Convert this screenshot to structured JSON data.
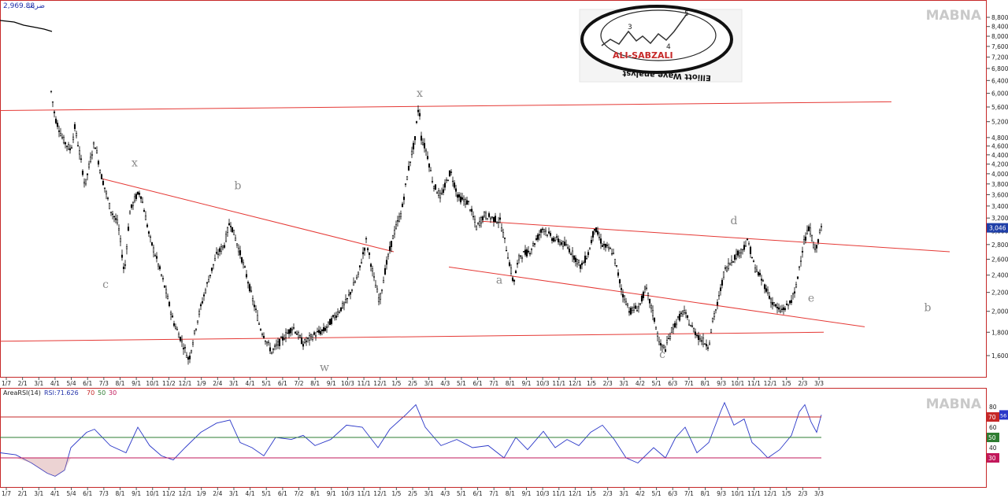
{
  "header": {
    "index_value": "2,969.88",
    "index_name": "ضریب"
  },
  "watermark": {
    "main": "MABNA",
    "rsi": "MABNA"
  },
  "logo": {
    "name": "ALI-SABZALI",
    "subtitle": "Elliott Wave analyst",
    "wave_labels": [
      "3",
      "4",
      "5"
    ]
  },
  "chart_data": [
    {
      "type": "candlestick",
      "ylim": [
        1450,
        9600
      ],
      "log_scale": true,
      "yticks": [
        1600,
        1800,
        2000,
        2200,
        2400,
        2600,
        2800,
        3000,
        3200,
        3400,
        3600,
        3800,
        4000,
        4200,
        4400,
        4600,
        4800,
        5200,
        5600,
        6000,
        6400,
        6800,
        7200,
        7600,
        8000,
        8400,
        8800
      ],
      "ytick_labels": [
        "1,600",
        "1,800",
        "2,000",
        "2,200",
        "2,400",
        "2,600",
        "2,800",
        "3,000",
        "3,200",
        "3,400",
        "3,600",
        "3,800",
        "4,000",
        "4,200",
        "4,400",
        "4,600",
        "4,800",
        "5,200",
        "5,600",
        "6,000",
        "6,400",
        "6,800",
        "7,200",
        "7,600",
        "8,000",
        "8,400",
        "8,800"
      ],
      "last_price_label": "3,046",
      "last_price": 3046,
      "xtick_labels": [
        "1/7",
        "2/1",
        "3/1",
        "4/1",
        "5/4",
        "6/1",
        "7/3",
        "8/1",
        "9/1",
        "10/1",
        "11/2",
        "12/1",
        "1/9",
        "2/4",
        "3/1",
        "4/1",
        "5/1",
        "6/1",
        "7/2",
        "8/1",
        "9/1",
        "10/3",
        "11/1",
        "12/1",
        "1/5",
        "2/5",
        "3/1",
        "4/3",
        "5/1",
        "6/1",
        "7/1",
        "8/1",
        "9/1",
        "10/3",
        "11/1",
        "12/1",
        "1/5",
        "2/3",
        "3/1",
        "4/2",
        "5/1",
        "6/3",
        "7/1",
        "8/1",
        "9/3",
        "10/1",
        "11/1",
        "12/1",
        "1/5",
        "2/3",
        "3/3"
      ],
      "price_path": [
        [
          65,
          6050
        ],
        [
          70,
          5300
        ],
        [
          80,
          4750
        ],
        [
          90,
          4500
        ],
        [
          95,
          5050
        ],
        [
          108,
          3750
        ],
        [
          120,
          4700
        ],
        [
          128,
          4000
        ],
        [
          140,
          3350
        ],
        [
          150,
          3100
        ],
        [
          158,
          2400
        ],
        [
          165,
          3300
        ],
        [
          172,
          3550
        ],
        [
          178,
          3650
        ],
        [
          190,
          2900
        ],
        [
          205,
          2400
        ],
        [
          220,
          1900
        ],
        [
          232,
          1700
        ],
        [
          240,
          1560
        ],
        [
          252,
          1950
        ],
        [
          265,
          2350
        ],
        [
          275,
          2650
        ],
        [
          285,
          2800
        ],
        [
          292,
          3150
        ],
        [
          300,
          2850
        ],
        [
          310,
          2500
        ],
        [
          320,
          2150
        ],
        [
          330,
          1850
        ],
        [
          340,
          1700
        ],
        [
          345,
          1630
        ],
        [
          360,
          1750
        ],
        [
          372,
          1850
        ],
        [
          385,
          1700
        ],
        [
          400,
          1780
        ],
        [
          412,
          1820
        ],
        [
          425,
          1950
        ],
        [
          440,
          2100
        ],
        [
          455,
          2400
        ],
        [
          465,
          2850
        ],
        [
          475,
          2350
        ],
        [
          482,
          2100
        ],
        [
          490,
          2500
        ],
        [
          500,
          2950
        ],
        [
          510,
          3300
        ],
        [
          520,
          4200
        ],
        [
          527,
          4750
        ],
        [
          532,
          5700
        ],
        [
          535,
          4800
        ],
        [
          542,
          4450
        ],
        [
          550,
          3800
        ],
        [
          560,
          3550
        ],
        [
          572,
          4050
        ],
        [
          582,
          3550
        ],
        [
          595,
          3450
        ],
        [
          605,
          3050
        ],
        [
          615,
          3250
        ],
        [
          625,
          3200
        ],
        [
          635,
          3150
        ],
        [
          645,
          2650
        ],
        [
          652,
          2300
        ],
        [
          660,
          2650
        ],
        [
          672,
          2700
        ],
        [
          680,
          2850
        ],
        [
          690,
          3050
        ],
        [
          700,
          2900
        ],
        [
          710,
          2850
        ],
        [
          722,
          2750
        ],
        [
          738,
          2500
        ],
        [
          748,
          2700
        ],
        [
          755,
          3050
        ],
        [
          765,
          2800
        ],
        [
          778,
          2700
        ],
        [
          790,
          2200
        ],
        [
          800,
          2000
        ],
        [
          812,
          2050
        ],
        [
          820,
          2250
        ],
        [
          830,
          1950
        ],
        [
          838,
          1680
        ],
        [
          845,
          1660
        ],
        [
          855,
          1850
        ],
        [
          868,
          2000
        ],
        [
          878,
          1850
        ],
        [
          888,
          1750
        ],
        [
          900,
          1680
        ],
        [
          905,
          1900
        ],
        [
          912,
          2100
        ],
        [
          920,
          2450
        ],
        [
          930,
          2600
        ],
        [
          940,
          2700
        ],
        [
          950,
          2850
        ],
        [
          958,
          2500
        ],
        [
          970,
          2300
        ],
        [
          980,
          2100
        ],
        [
          990,
          2000
        ],
        [
          1000,
          2050
        ],
        [
          1010,
          2200
        ],
        [
          1020,
          2800
        ],
        [
          1028,
          3050
        ],
        [
          1035,
          2700
        ],
        [
          1043,
          3046
        ]
      ],
      "rsi_path": [
        [
          0,
          35
        ],
        [
          20,
          33
        ],
        [
          40,
          25
        ],
        [
          60,
          15
        ],
        [
          70,
          12
        ],
        [
          82,
          18
        ],
        [
          90,
          40
        ],
        [
          110,
          55
        ],
        [
          120,
          58
        ],
        [
          140,
          42
        ],
        [
          160,
          35
        ],
        [
          175,
          60
        ],
        [
          190,
          42
        ],
        [
          205,
          32
        ],
        [
          220,
          28
        ],
        [
          235,
          40
        ],
        [
          255,
          55
        ],
        [
          275,
          64
        ],
        [
          292,
          67
        ],
        [
          305,
          45
        ],
        [
          320,
          40
        ],
        [
          335,
          32
        ],
        [
          350,
          50
        ],
        [
          370,
          48
        ],
        [
          385,
          52
        ],
        [
          400,
          42
        ],
        [
          420,
          48
        ],
        [
          440,
          62
        ],
        [
          460,
          60
        ],
        [
          480,
          40
        ],
        [
          495,
          58
        ],
        [
          515,
          72
        ],
        [
          528,
          82
        ],
        [
          540,
          60
        ],
        [
          560,
          42
        ],
        [
          580,
          48
        ],
        [
          600,
          40
        ],
        [
          620,
          42
        ],
        [
          640,
          30
        ],
        [
          655,
          50
        ],
        [
          670,
          38
        ],
        [
          690,
          56
        ],
        [
          705,
          40
        ],
        [
          720,
          48
        ],
        [
          735,
          42
        ],
        [
          750,
          55
        ],
        [
          765,
          62
        ],
        [
          780,
          48
        ],
        [
          795,
          30
        ],
        [
          810,
          25
        ],
        [
          830,
          40
        ],
        [
          845,
          30
        ],
        [
          858,
          50
        ],
        [
          870,
          60
        ],
        [
          885,
          35
        ],
        [
          900,
          45
        ],
        [
          915,
          75
        ],
        [
          920,
          84
        ],
        [
          932,
          62
        ],
        [
          945,
          68
        ],
        [
          955,
          45
        ],
        [
          965,
          38
        ],
        [
          975,
          30
        ],
        [
          990,
          38
        ],
        [
          1005,
          52
        ],
        [
          1015,
          75
        ],
        [
          1022,
          82
        ],
        [
          1030,
          65
        ],
        [
          1037,
          55
        ],
        [
          1043,
          72
        ]
      ],
      "rsi_label": "AreaRSI(14)",
      "rsi_value_label": "RSI:71.626",
      "rsi_levels": [
        "70",
        "50",
        "30"
      ],
      "rsi_ticks": [
        "80",
        "60",
        "40"
      ],
      "rsi_level_values": [
        70,
        50,
        30
      ],
      "rsi_tick_values": [
        80,
        60,
        40
      ],
      "rsi_right_label": "56",
      "trendlines": [
        {
          "from": [
            0,
            5500
          ],
          "to": [
            1132,
            5750
          ]
        },
        {
          "from": [
            0,
            1720
          ],
          "to": [
            1046,
            1800
          ]
        },
        {
          "from": [
            130,
            3900
          ],
          "to": [
            500,
            2700
          ]
        },
        {
          "from": [
            570,
            2500
          ],
          "to": [
            1098,
            1850
          ]
        },
        {
          "from": [
            610,
            3150
          ],
          "to": [
            1206,
            2700
          ]
        }
      ],
      "wave_labels": [
        {
          "text": "x",
          "x": 533,
          "y": 5900
        },
        {
          "text": "x",
          "x": 171,
          "y": 4150
        },
        {
          "text": "b",
          "x": 302,
          "y": 3700
        },
        {
          "text": "c",
          "x": 134,
          "y": 2250
        },
        {
          "text": "a",
          "x": 634,
          "y": 2300
        },
        {
          "text": "d",
          "x": 932,
          "y": 3100
        },
        {
          "text": "e",
          "x": 1030,
          "y": 2100
        },
        {
          "text": "b",
          "x": 1178,
          "y": 2000
        },
        {
          "text": "c",
          "x": 841,
          "y": 1580
        },
        {
          "text": "w",
          "x": 412,
          "y": 1480
        }
      ]
    }
  ]
}
